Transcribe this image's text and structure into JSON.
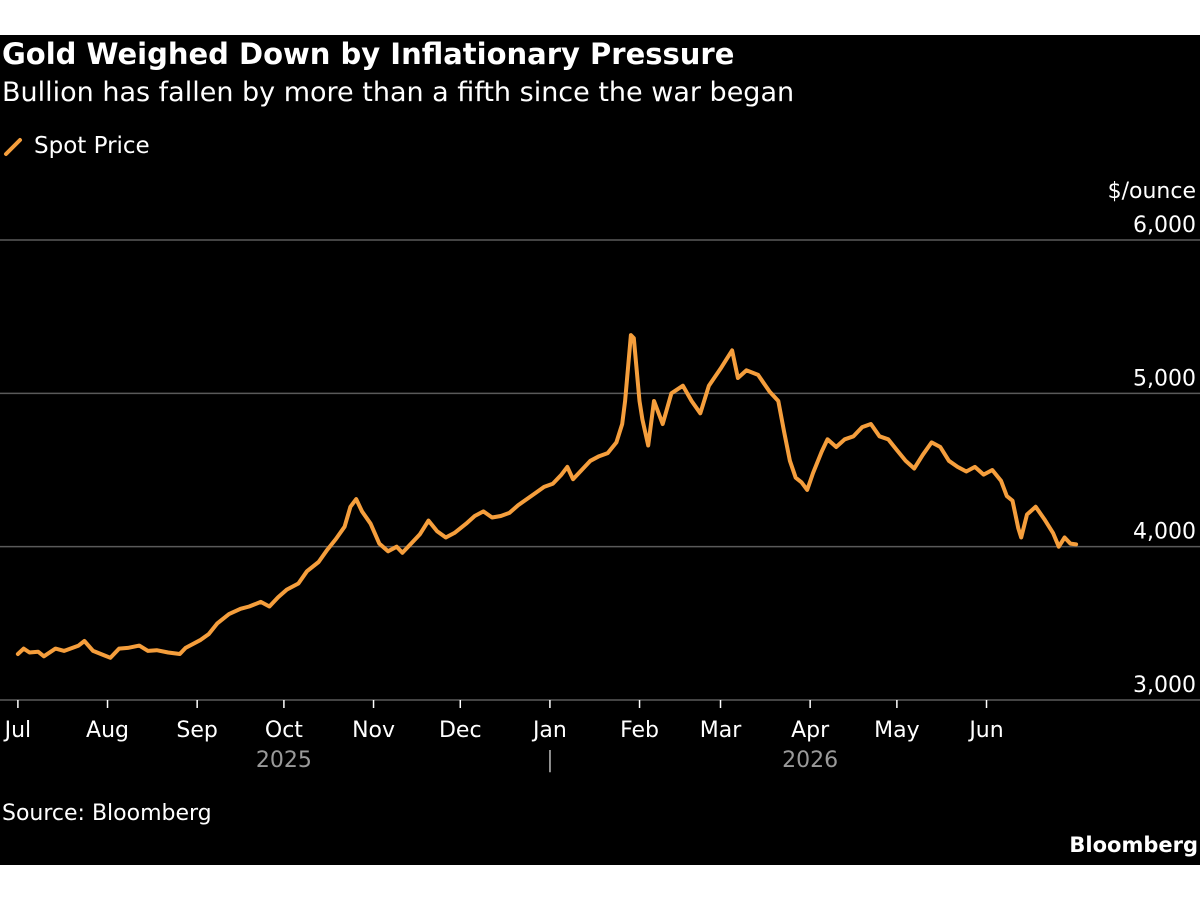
{
  "chart_data": {
    "type": "line",
    "title": "Gold Weighed Down by Inflationary Pressure",
    "subtitle": "Bullion has fallen by more than a fifth since the war began",
    "ylabel": "$/ounce",
    "ylim": [
      3000,
      6000
    ],
    "yticks": [
      {
        "value": 6000,
        "label": "6,000"
      },
      {
        "value": 5000,
        "label": "5,000"
      },
      {
        "value": 4000,
        "label": "4,000"
      },
      {
        "value": 3000,
        "label": "3,000"
      }
    ],
    "grid": true,
    "legend_position": "top-left",
    "xlim": [
      "2025-06-30",
      "2026-07-31"
    ],
    "xticks": [
      {
        "date": "2025-07-01",
        "label": "Jul"
      },
      {
        "date": "2025-08-01",
        "label": "Aug"
      },
      {
        "date": "2025-09-01",
        "label": "Sep"
      },
      {
        "date": "2025-10-01",
        "label": "Oct"
      },
      {
        "date": "2025-11-01",
        "label": "Nov"
      },
      {
        "date": "2025-12-01",
        "label": "Dec"
      },
      {
        "date": "2026-01-01",
        "label": "Jan"
      },
      {
        "date": "2026-02-01",
        "label": "Feb"
      },
      {
        "date": "2026-03-01",
        "label": "Mar"
      },
      {
        "date": "2026-04-01",
        "label": "Apr"
      },
      {
        "date": "2026-05-01",
        "label": "May"
      },
      {
        "date": "2026-06-01",
        "label": "Jun"
      }
    ],
    "years": [
      {
        "label": "2025",
        "center_date": "2025-10-01"
      },
      {
        "label": "2026",
        "center_date": "2026-04-01"
      }
    ],
    "year_divider_date": "2026-01-01",
    "year_divider_glyph": "|",
    "series": [
      {
        "name": "Spot Price",
        "color": "#f59e3c",
        "points": [
          [
            "2025-07-01",
            3300
          ],
          [
            "2025-07-03",
            3335
          ],
          [
            "2025-07-05",
            3310
          ],
          [
            "2025-07-08",
            3315
          ],
          [
            "2025-07-10",
            3285
          ],
          [
            "2025-07-14",
            3335
          ],
          [
            "2025-07-17",
            3320
          ],
          [
            "2025-07-22",
            3355
          ],
          [
            "2025-07-24",
            3385
          ],
          [
            "2025-07-27",
            3320
          ],
          [
            "2025-07-31",
            3290
          ],
          [
            "2025-08-02",
            3275
          ],
          [
            "2025-08-05",
            3335
          ],
          [
            "2025-08-08",
            3340
          ],
          [
            "2025-08-12",
            3355
          ],
          [
            "2025-08-15",
            3320
          ],
          [
            "2025-08-18",
            3325
          ],
          [
            "2025-08-22",
            3310
          ],
          [
            "2025-08-26",
            3300
          ],
          [
            "2025-08-28",
            3340
          ],
          [
            "2025-09-02",
            3390
          ],
          [
            "2025-09-05",
            3430
          ],
          [
            "2025-09-08",
            3500
          ],
          [
            "2025-09-12",
            3560
          ],
          [
            "2025-09-16",
            3595
          ],
          [
            "2025-09-19",
            3610
          ],
          [
            "2025-09-23",
            3640
          ],
          [
            "2025-09-26",
            3610
          ],
          [
            "2025-09-29",
            3670
          ],
          [
            "2025-10-02",
            3720
          ],
          [
            "2025-10-06",
            3760
          ],
          [
            "2025-10-09",
            3840
          ],
          [
            "2025-10-13",
            3900
          ],
          [
            "2025-10-16",
            3980
          ],
          [
            "2025-10-19",
            4050
          ],
          [
            "2025-10-22",
            4130
          ],
          [
            "2025-10-24",
            4260
          ],
          [
            "2025-10-26",
            4310
          ],
          [
            "2025-10-28",
            4230
          ],
          [
            "2025-10-31",
            4150
          ],
          [
            "2025-11-03",
            4020
          ],
          [
            "2025-11-06",
            3970
          ],
          [
            "2025-11-09",
            4000
          ],
          [
            "2025-11-11",
            3960
          ],
          [
            "2025-11-14",
            4020
          ],
          [
            "2025-11-17",
            4080
          ],
          [
            "2025-11-20",
            4170
          ],
          [
            "2025-11-23",
            4100
          ],
          [
            "2025-11-26",
            4060
          ],
          [
            "2025-11-29",
            4090
          ],
          [
            "2025-12-03",
            4150
          ],
          [
            "2025-12-06",
            4200
          ],
          [
            "2025-12-09",
            4230
          ],
          [
            "2025-12-12",
            4190
          ],
          [
            "2025-12-15",
            4200
          ],
          [
            "2025-12-18",
            4220
          ],
          [
            "2025-12-21",
            4270
          ],
          [
            "2025-12-24",
            4310
          ],
          [
            "2025-12-27",
            4350
          ],
          [
            "2025-12-30",
            4390
          ],
          [
            "2026-01-02",
            4410
          ],
          [
            "2026-01-05",
            4470
          ],
          [
            "2026-01-07",
            4520
          ],
          [
            "2026-01-09",
            4440
          ],
          [
            "2026-01-12",
            4500
          ],
          [
            "2026-01-15",
            4560
          ],
          [
            "2026-01-18",
            4590
          ],
          [
            "2026-01-21",
            4610
          ],
          [
            "2026-01-24",
            4680
          ],
          [
            "2026-01-26",
            4800
          ],
          [
            "2026-01-27",
            4950
          ],
          [
            "2026-01-29",
            5380
          ],
          [
            "2026-01-30",
            5360
          ],
          [
            "2026-02-01",
            4950
          ],
          [
            "2026-02-02",
            4830
          ],
          [
            "2026-02-04",
            4660
          ],
          [
            "2026-02-06",
            4950
          ],
          [
            "2026-02-09",
            4800
          ],
          [
            "2026-02-12",
            5000
          ],
          [
            "2026-02-16",
            5050
          ],
          [
            "2026-02-19",
            4950
          ],
          [
            "2026-02-22",
            4870
          ],
          [
            "2026-02-25",
            5050
          ],
          [
            "2026-03-01",
            5160
          ],
          [
            "2026-03-03",
            5220
          ],
          [
            "2026-03-05",
            5280
          ],
          [
            "2026-03-07",
            5100
          ],
          [
            "2026-03-10",
            5150
          ],
          [
            "2026-03-14",
            5120
          ],
          [
            "2026-03-18",
            5010
          ],
          [
            "2026-03-21",
            4950
          ],
          [
            "2026-03-23",
            4750
          ],
          [
            "2026-03-25",
            4560
          ],
          [
            "2026-03-27",
            4450
          ],
          [
            "2026-03-29",
            4420
          ],
          [
            "2026-03-31",
            4370
          ],
          [
            "2026-04-02",
            4480
          ],
          [
            "2026-04-05",
            4620
          ],
          [
            "2026-04-07",
            4700
          ],
          [
            "2026-04-10",
            4650
          ],
          [
            "2026-04-13",
            4700
          ],
          [
            "2026-04-16",
            4720
          ],
          [
            "2026-04-19",
            4780
          ],
          [
            "2026-04-22",
            4800
          ],
          [
            "2026-04-25",
            4720
          ],
          [
            "2026-04-28",
            4700
          ],
          [
            "2026-05-01",
            4630
          ],
          [
            "2026-05-04",
            4560
          ],
          [
            "2026-05-07",
            4510
          ],
          [
            "2026-05-10",
            4600
          ],
          [
            "2026-05-13",
            4680
          ],
          [
            "2026-05-16",
            4650
          ],
          [
            "2026-05-19",
            4560
          ],
          [
            "2026-05-22",
            4520
          ],
          [
            "2026-05-25",
            4490
          ],
          [
            "2026-05-28",
            4520
          ],
          [
            "2026-05-31",
            4470
          ],
          [
            "2026-06-03",
            4500
          ],
          [
            "2026-06-06",
            4430
          ],
          [
            "2026-06-08",
            4330
          ],
          [
            "2026-06-10",
            4300
          ],
          [
            "2026-06-12",
            4120
          ],
          [
            "2026-06-13",
            4060
          ],
          [
            "2026-06-15",
            4210
          ],
          [
            "2026-06-18",
            4260
          ],
          [
            "2026-06-21",
            4180
          ],
          [
            "2026-06-24",
            4090
          ],
          [
            "2026-06-26",
            4000
          ],
          [
            "2026-06-28",
            4060
          ],
          [
            "2026-06-30",
            4020
          ],
          [
            "2026-07-02",
            4015
          ]
        ]
      }
    ]
  },
  "colors": {
    "background": "#000000",
    "line": "#f59e3c",
    "gridline": "#5a5a5a",
    "text": "#ffffff",
    "year_text": "#9a9a9a"
  },
  "footer": {
    "source": "Source: Bloomberg",
    "brand": "Bloomberg"
  }
}
